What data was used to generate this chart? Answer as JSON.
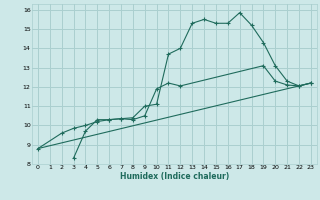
{
  "xlabel": "Humidex (Indice chaleur)",
  "xlim": [
    -0.5,
    23.5
  ],
  "ylim": [
    8,
    16.3
  ],
  "xticks": [
    0,
    1,
    2,
    3,
    4,
    5,
    6,
    7,
    8,
    9,
    10,
    11,
    12,
    13,
    14,
    15,
    16,
    17,
    18,
    19,
    20,
    21,
    22,
    23
  ],
  "yticks": [
    8,
    9,
    10,
    11,
    12,
    13,
    14,
    15,
    16
  ],
  "bg_color": "#cde8e8",
  "grid_color": "#aacfcf",
  "line_color": "#1f6b5c",
  "line1_x": [
    0,
    2,
    3,
    4,
    5,
    6,
    7,
    8,
    9,
    10,
    11,
    12,
    13,
    14,
    15,
    16,
    17,
    18,
    19,
    20,
    21,
    22,
    23
  ],
  "line1_y": [
    8.8,
    9.6,
    9.85,
    10.0,
    10.2,
    10.3,
    10.35,
    10.4,
    11.0,
    11.1,
    13.7,
    14.0,
    15.3,
    15.5,
    15.3,
    15.3,
    15.85,
    15.2,
    14.3,
    13.1,
    12.3,
    12.05,
    12.2
  ],
  "line2_x": [
    3,
    4,
    5,
    6,
    7,
    8,
    9,
    10,
    11,
    12,
    19,
    20,
    21,
    22,
    23
  ],
  "line2_y": [
    8.3,
    9.7,
    10.3,
    10.3,
    10.35,
    10.3,
    10.5,
    11.9,
    12.2,
    12.05,
    13.1,
    12.3,
    12.1,
    12.05,
    12.2
  ],
  "line3_x": [
    0,
    23
  ],
  "line3_y": [
    8.8,
    12.2
  ]
}
